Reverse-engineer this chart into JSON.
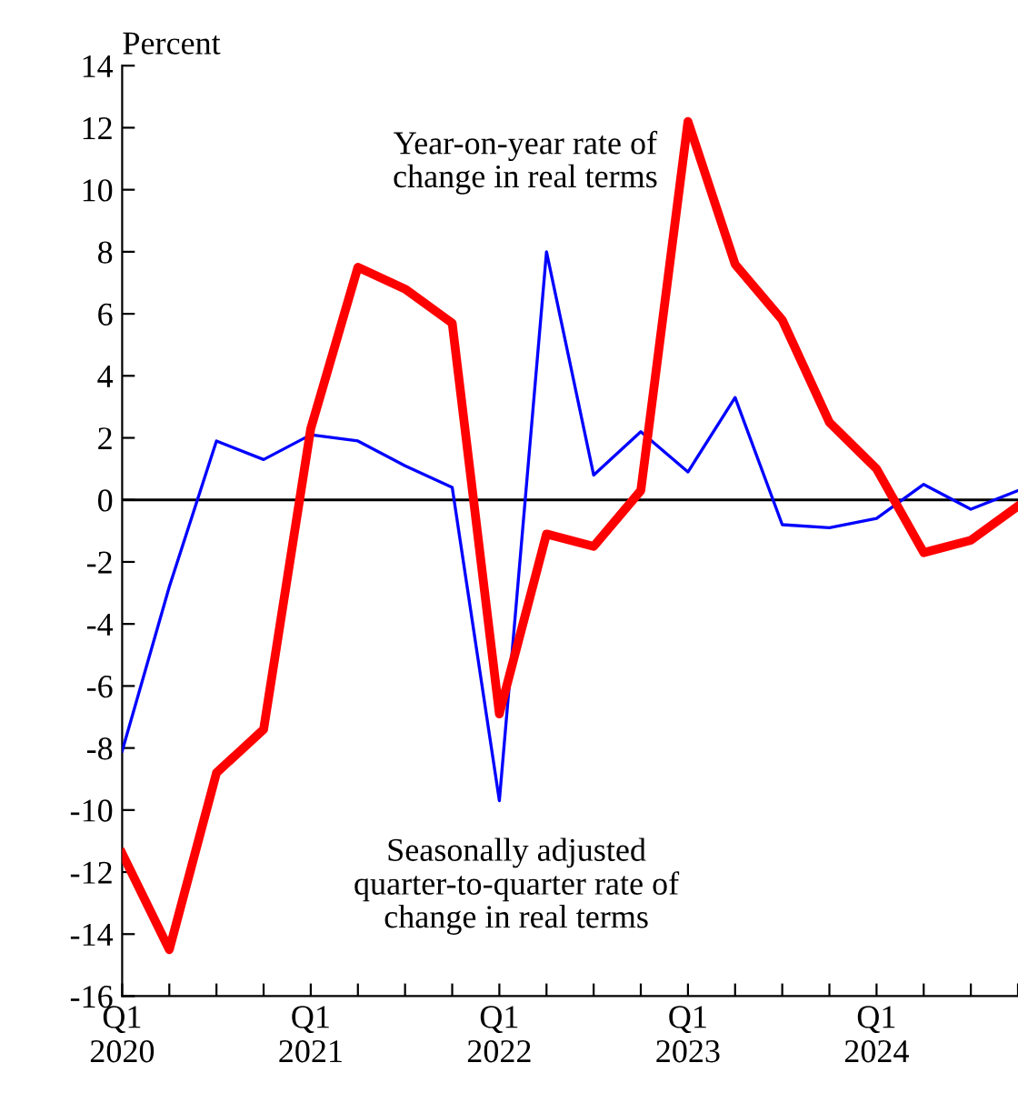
{
  "chart_data": {
    "type": "line",
    "ylabel": "Percent",
    "categories": [
      "Q1\n2020",
      null,
      null,
      null,
      "Q1\n2021",
      null,
      null,
      null,
      "Q1\n2022",
      null,
      null,
      null,
      "Q1\n2023",
      null,
      null,
      null,
      "Q1\n2024",
      null,
      null,
      null
    ],
    "series": [
      {
        "name": "Year-on-year rate of\nchange in real terms",
        "color": "#ff0000",
        "values": [
          -11.4,
          -14.5,
          -8.8,
          -7.4,
          2.3,
          7.5,
          6.8,
          5.7,
          -6.9,
          -1.1,
          -1.5,
          0.3,
          12.2,
          7.6,
          5.8,
          2.5,
          1.0,
          -1.7,
          -1.3,
          -0.2
        ]
      },
      {
        "name": "Seasonally adjusted\nquarter-to-quarter rate of\nchange in real terms",
        "color": "#0000ff",
        "values": [
          -8.1,
          -2.8,
          1.9,
          1.3,
          2.1,
          1.9,
          1.1,
          0.4,
          -9.7,
          8.0,
          0.8,
          2.2,
          0.9,
          3.3,
          -0.8,
          -0.9,
          -0.6,
          0.5,
          -0.3,
          0.3
        ]
      }
    ],
    "ylim": [
      -16,
      14
    ],
    "yticks": [
      -16,
      -14,
      -12,
      -10,
      -8,
      -6,
      -4,
      -2,
      0,
      2,
      4,
      6,
      8,
      10,
      12,
      14
    ],
    "ref_lines": [
      {
        "axis": "y",
        "value": 0,
        "color": "#000000"
      }
    ],
    "grid": false,
    "legend": false,
    "marker": "none",
    "line_style": "solid"
  }
}
